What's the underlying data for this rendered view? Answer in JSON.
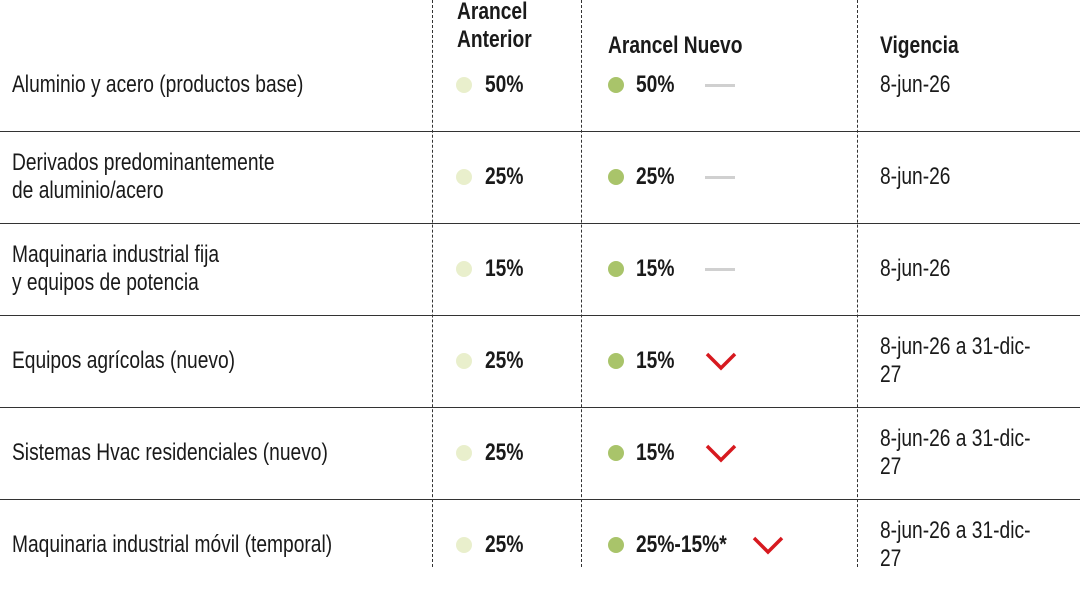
{
  "table": {
    "headers": [
      "Arancel\nAnterior",
      "Arancel Nuevo",
      "Vigencia"
    ],
    "rows": [
      [
        "Aluminio y acero (productos base)",
        "50%",
        "50%",
        "8-jun-26"
      ],
      [
        "Derivados predominantemente\nde aluminio/acero",
        "25%",
        "25%",
        "8-jun-26"
      ],
      [
        "Maquinaria industrial fija\ny equipos de potencia",
        "15%",
        "15%",
        "8-jun-26"
      ],
      [
        "Equipos agrícolas (nuevo)",
        "25%",
        "15%",
        "8-jun-26 a 31-dic-27"
      ],
      [
        "Sistemas Hvac residenciales (nuevo)",
        "25%",
        "15%",
        "8-jun-26 a 31-dic-27"
      ],
      [
        "Maquinaria industrial móvil (temporal)",
        "25%",
        "25%-15%*",
        "8-jun-26 a 31-dic-27"
      ]
    ]
  }
}
